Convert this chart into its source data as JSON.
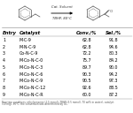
{
  "reaction_line1": "Cat. Solvent",
  "reaction_line2": "TBHP, 80°C",
  "headers": [
    "Entry",
    "Catalyst",
    "Conv./%",
    "Sel./%"
  ],
  "rows": [
    [
      "1",
      "M-C-9",
      "62.8",
      "91.8"
    ],
    [
      "2",
      "M-N-C-9",
      "62.8",
      "94.6"
    ],
    [
      "3",
      "Co-N-C-9",
      "72.2",
      "80.3"
    ],
    [
      "4",
      "M-Co-N-C-0",
      "75.7",
      "84.2"
    ],
    [
      "5",
      "M-Co-N-C-3",
      "89.7",
      "90.0"
    ],
    [
      "6",
      "M-Co-N-C-6",
      "90.3",
      "94.2"
    ],
    [
      "7",
      "M-Co-N-C-9",
      "90.5",
      "97.3"
    ],
    [
      "8",
      "M-Co-N-C-12",
      "92.6",
      "88.5"
    ],
    [
      "9",
      "M-Co-N-C-R",
      "60.0",
      "87.2"
    ]
  ],
  "footnote1": "Reaction conditions: ethylbenzene (1.5 mmol), TBHP (3.5 mmol), 70 wt% in water), catalyst",
  "footnote2": "(10 mg), 80°C; the conversion was determined by GC.",
  "bg_color": "#ffffff",
  "text_color": "#000000",
  "header_fs": 3.8,
  "data_fs": 3.4,
  "footnote_fs": 2.0
}
